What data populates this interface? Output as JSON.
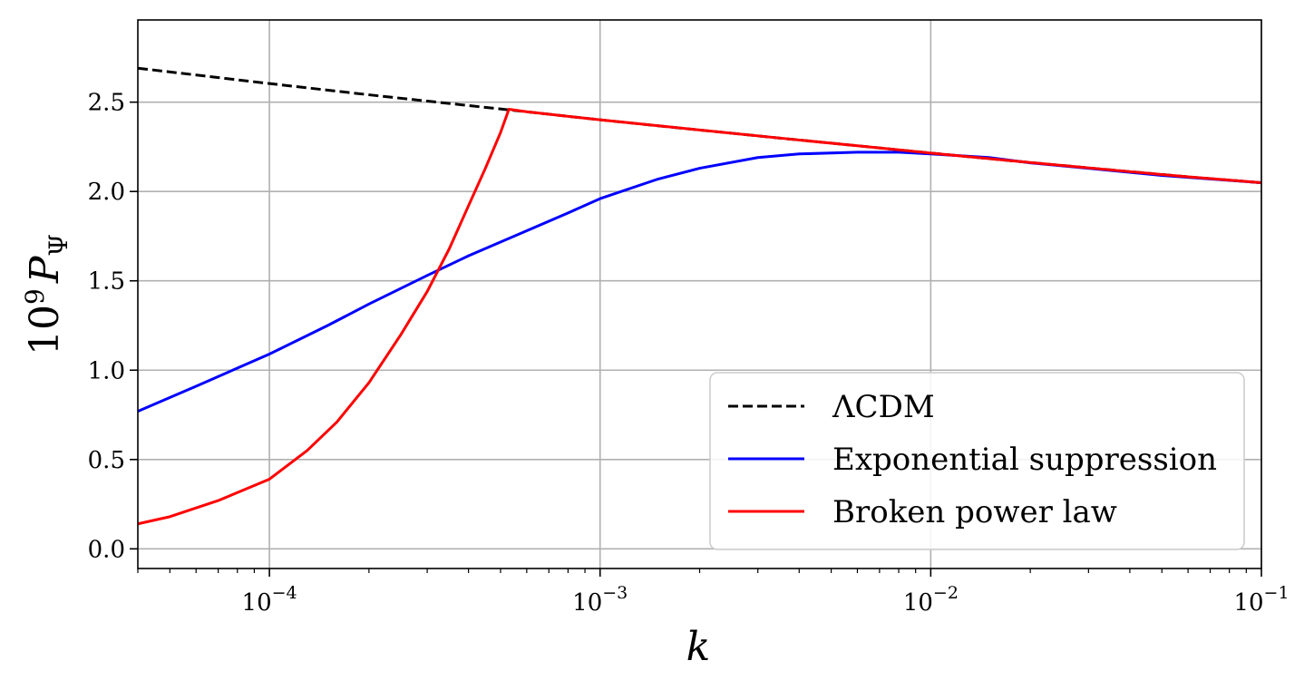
{
  "chart_data": {
    "type": "line",
    "xlabel": "k",
    "ylabel": "10^9 P_Ψ",
    "xscale": "log",
    "xlim": [
      4e-05,
      0.1
    ],
    "ylim": [
      -0.11,
      2.96
    ],
    "grid": true,
    "legend_position": "lower-right",
    "x_ticks": [
      {
        "value": 0.0001,
        "base": "10",
        "exp": "−4"
      },
      {
        "value": 0.001,
        "base": "10",
        "exp": "−3"
      },
      {
        "value": 0.01,
        "base": "10",
        "exp": "−2"
      },
      {
        "value": 0.1,
        "base": "10",
        "exp": "−1"
      }
    ],
    "y_ticks": [
      {
        "value": 0.0,
        "label": "0.0"
      },
      {
        "value": 0.5,
        "label": "0.5"
      },
      {
        "value": 1.0,
        "label": "1.0"
      },
      {
        "value": 1.5,
        "label": "1.5"
      },
      {
        "value": 2.0,
        "label": "2.0"
      },
      {
        "value": 2.5,
        "label": "2.5"
      }
    ],
    "series": [
      {
        "name": "ΛCDM",
        "color": "#000000",
        "dash": "dashed",
        "x": [
          4e-05,
          0.0001,
          0.0002,
          0.0004,
          0.0006,
          0.001,
          0.002,
          0.004,
          0.006,
          0.01,
          0.02,
          0.04,
          0.06,
          0.1
        ],
        "y": [
          2.69,
          2.604,
          2.541,
          2.481,
          2.446,
          2.401,
          2.344,
          2.288,
          2.256,
          2.215,
          2.162,
          2.111,
          2.082,
          2.049
        ]
      },
      {
        "name": "Exponential suppression",
        "color": "#0000ff",
        "dash": "solid",
        "x": [
          4e-05,
          6e-05,
          0.0001,
          0.00015,
          0.0002,
          0.0003,
          0.0004,
          0.0006,
          0.0008,
          0.001,
          0.0015,
          0.002,
          0.003,
          0.004,
          0.006,
          0.008,
          0.01,
          0.015,
          0.02,
          0.03,
          0.05,
          0.07,
          0.1
        ],
        "y": [
          0.77,
          0.91,
          1.09,
          1.25,
          1.37,
          1.53,
          1.64,
          1.78,
          1.88,
          1.96,
          2.07,
          2.13,
          2.19,
          2.21,
          2.22,
          2.22,
          2.21,
          2.19,
          2.16,
          2.13,
          2.09,
          2.07,
          2.049
        ]
      },
      {
        "name": "Broken power law",
        "color": "#ff0000",
        "dash": "solid",
        "x": [
          4e-05,
          5e-05,
          7e-05,
          0.0001,
          0.00013,
          0.00016,
          0.0002,
          0.00025,
          0.0003,
          0.00035,
          0.0004,
          0.00045,
          0.0005,
          0.00053,
          0.0006,
          0.001,
          0.002,
          0.004,
          0.006,
          0.01,
          0.02,
          0.04,
          0.06,
          0.1
        ],
        "y": [
          0.14,
          0.18,
          0.27,
          0.39,
          0.55,
          0.71,
          0.93,
          1.2,
          1.44,
          1.68,
          1.92,
          2.13,
          2.33,
          2.46,
          2.446,
          2.401,
          2.344,
          2.288,
          2.256,
          2.215,
          2.162,
          2.111,
          2.082,
          2.049
        ]
      }
    ]
  }
}
